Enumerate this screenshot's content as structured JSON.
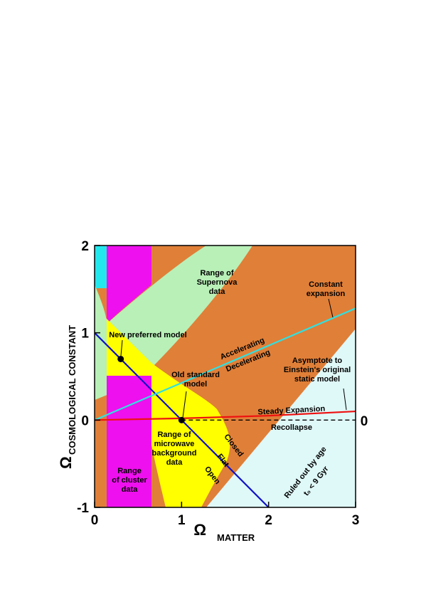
{
  "chart_data": {
    "type": "line",
    "xlabel_symbol": "Ω",
    "xlabel": "MATTER",
    "ylabel_symbol": "Ω",
    "ylabel": "COSMOLOGICAL CONSTANT",
    "xlim": [
      0,
      3
    ],
    "ylim": [
      -1,
      2
    ],
    "xticks": [
      0,
      1,
      2,
      3
    ],
    "yticks": [
      -1,
      0,
      1,
      2
    ],
    "series": [
      {
        "color": "#1010c8",
        "x": [
          0,
          2
        ],
        "values": [
          1,
          -1
        ]
      },
      {
        "color": "#30e0e0",
        "x": [
          0,
          3
        ],
        "values": [
          0,
          1.28
        ]
      },
      {
        "color": "#ee1111",
        "x": [
          0,
          1,
          2,
          3
        ],
        "values": [
          0,
          0.02,
          0.05,
          0.1
        ]
      },
      {
        "color": "#000000",
        "dashed": true,
        "x": [
          1,
          3
        ],
        "values": [
          0,
          0
        ]
      }
    ],
    "points": {
      "color": "#000000",
      "x": [
        0.3,
        1
      ],
      "values": [
        0.7,
        0
      ]
    },
    "annotations": [
      {
        "text": [
          "Range of",
          "Supernova",
          "data"
        ]
      },
      {
        "text": [
          "Constant",
          "expansion"
        ]
      },
      {
        "text": [
          "New preferred model"
        ]
      },
      {
        "text": [
          "Accelerating"
        ]
      },
      {
        "text": [
          "Decelerating"
        ]
      },
      {
        "text": [
          "Asymptote to",
          "Einstein's original",
          "static model"
        ]
      },
      {
        "text": [
          "Old standard",
          "model"
        ]
      },
      {
        "text": [
          "Steady Expansion"
        ]
      },
      {
        "text": [
          "Recollapse"
        ]
      },
      {
        "text": [
          "Range of",
          "microwave",
          "background",
          "data"
        ]
      },
      {
        "text": [
          "Closed"
        ]
      },
      {
        "text": [
          "Flat"
        ]
      },
      {
        "text": [
          "Open"
        ]
      },
      {
        "text": [
          "Range",
          "of cluster",
          "data"
        ]
      },
      {
        "text": [
          "Ruled out by age"
        ]
      },
      {
        "text": [
          "t₀ < 9 Gyr"
        ]
      },
      {
        "text": [
          "0"
        ]
      }
    ]
  }
}
